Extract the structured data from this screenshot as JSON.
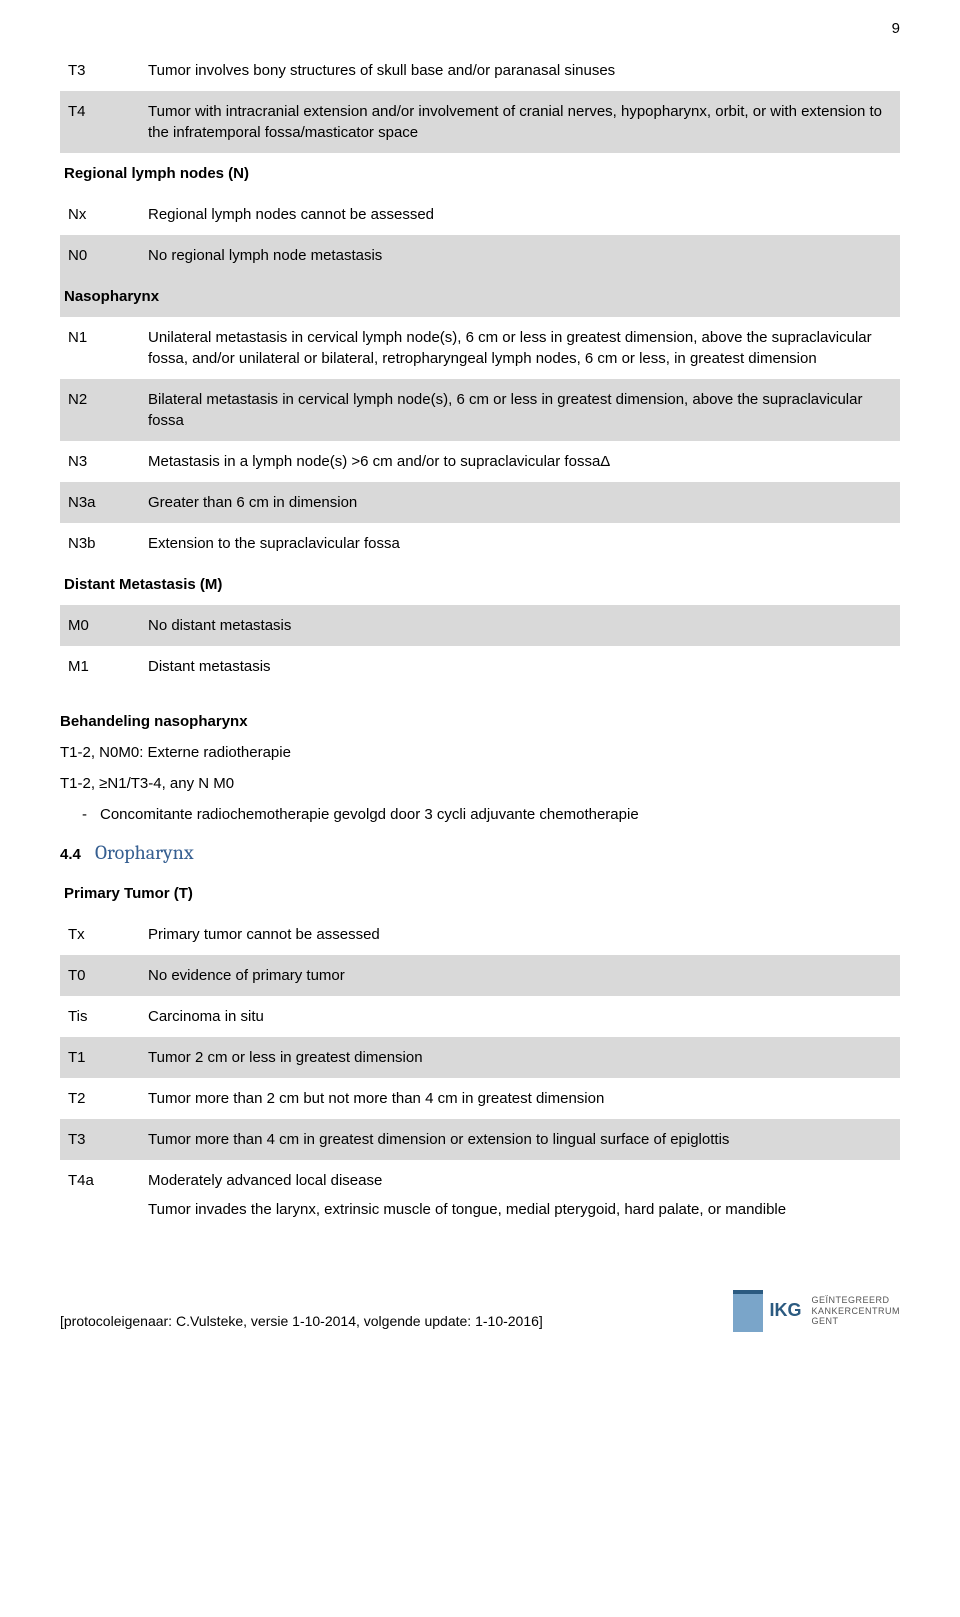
{
  "page_number": "9",
  "colors": {
    "shaded_row": "#d9d9d9",
    "heading_blue": "#365f91",
    "text": "#000000",
    "background": "#ffffff",
    "logo_light": "#7aa5c9",
    "logo_dark": "#2b5a80"
  },
  "rows": [
    {
      "code": "T3",
      "desc": "Tumor involves bony structures of skull base and/or paranasal sinuses",
      "shaded": false,
      "sub": false
    },
    {
      "code": "T4",
      "desc": "Tumor with intracranial extension and/or involvement of cranial nerves, hypopharynx, orbit, or with extension to the infratemporal fossa/masticator space",
      "shaded": true,
      "sub": false
    },
    {
      "section": "Regional lymph nodes (N)"
    },
    {
      "code": "Nx",
      "desc": "Regional lymph nodes cannot be assessed",
      "shaded": false,
      "sub": false
    },
    {
      "code": "N0",
      "desc": "No regional lymph node metastasis",
      "shaded": true,
      "sub": false
    },
    {
      "section": "Nasopharynx",
      "shaded_section": true
    },
    {
      "code": "N1",
      "desc": "Unilateral metastasis in cervical lymph node(s), 6 cm or less in greatest dimension, above the supraclavicular fossa, and/or unilateral or bilateral, retropharyngeal lymph nodes, 6 cm or less, in greatest dimension",
      "shaded": false,
      "sub": false
    },
    {
      "code": "N2",
      "desc": "Bilateral metastasis in cervical lymph node(s), 6 cm or less in greatest dimension, above the supraclavicular fossa",
      "shaded": true,
      "sub": false
    },
    {
      "code": "N3",
      "desc": "Metastasis in a lymph node(s) >6 cm and/or to supraclavicular fossaΔ",
      "shaded": false,
      "sub": false
    },
    {
      "code": "N3a",
      "desc": "Greater than 6 cm in dimension",
      "shaded": true,
      "sub": true
    },
    {
      "code": "N3b",
      "desc": "Extension to the supraclavicular fossa",
      "shaded": false,
      "sub": true
    },
    {
      "section": "Distant Metastasis (M)"
    },
    {
      "code": "M0",
      "desc": "No distant metastasis",
      "shaded": true,
      "sub": false
    },
    {
      "code": "M1",
      "desc": "Distant metastasis",
      "shaded": false,
      "sub": false
    }
  ],
  "treatment": {
    "heading": "Behandeling nasopharynx",
    "line1": "T1-2, N0M0: Externe radiotherapie",
    "line2": "T1-2, ≥N1/T3-4, any N M0",
    "bullet": "Concomitante radiochemotherapie gevolgd door 3 cycli adjuvante chemotherapie"
  },
  "subsection": {
    "number": "4.4",
    "title": "Oropharynx"
  },
  "rows2": [
    {
      "section": "Primary Tumor (T)"
    },
    {
      "code": "Tx",
      "desc": "Primary tumor cannot be assessed",
      "shaded": false,
      "sub": false
    },
    {
      "code": "T0",
      "desc": "No evidence of primary tumor",
      "shaded": true,
      "sub": false
    },
    {
      "code": "Tis",
      "desc": "Carcinoma in situ",
      "shaded": false,
      "sub": false
    },
    {
      "code": "T1",
      "desc": "Tumor 2 cm or less in greatest dimension",
      "shaded": true,
      "sub": false
    },
    {
      "code": "T2",
      "desc": "Tumor more than 2 cm but not more than 4 cm in greatest dimension",
      "shaded": false,
      "sub": false
    },
    {
      "code": "T3",
      "desc": "Tumor more than 4 cm in greatest dimension or extension to lingual surface of epiglottis",
      "shaded": true,
      "sub": false
    },
    {
      "code": "T4a",
      "desc_pre": "Moderately advanced local disease",
      "desc": "Tumor invades the larynx, extrinsic muscle of tongue, medial pterygoid, hard palate, or mandible",
      "shaded": false,
      "sub": false
    }
  ],
  "footer": {
    "text": "[protocoleigenaar: C.Vulsteke, versie 1-10-2014, volgende update: 1-10-2016]",
    "logo_abbr": "IKG",
    "logo_lines": [
      "GEÏNTEGREERD",
      "KANKERCENTRUM",
      "GENT"
    ]
  }
}
